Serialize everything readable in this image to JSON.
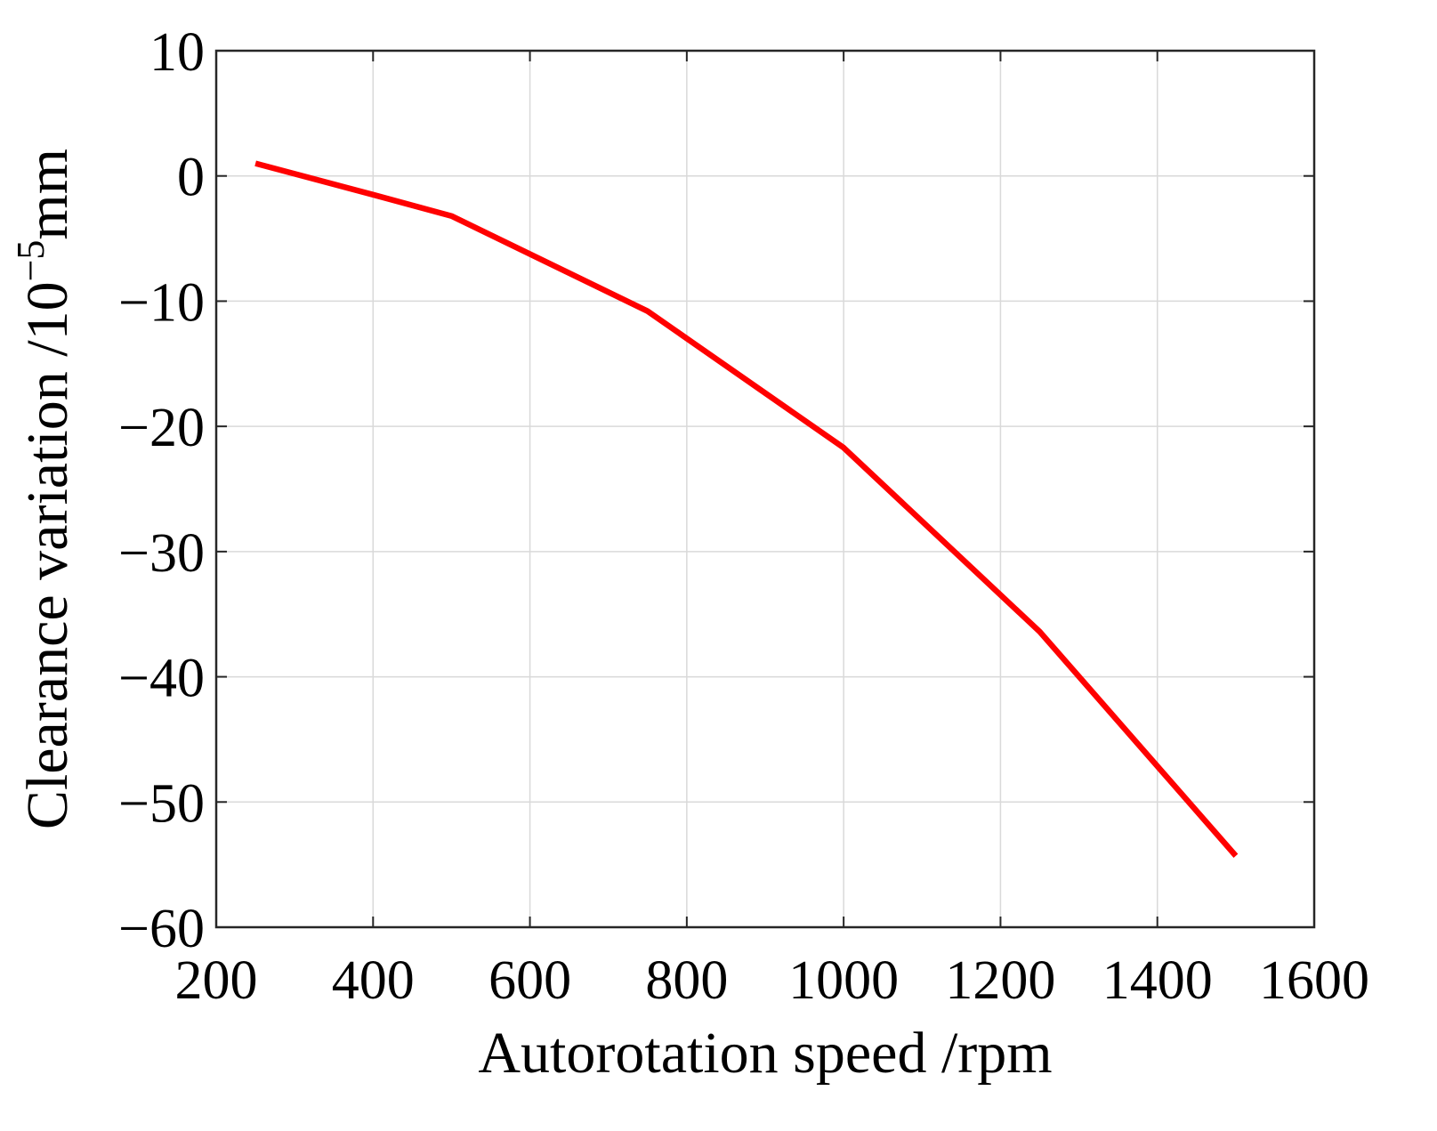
{
  "chart_data": {
    "type": "line",
    "title": "",
    "xlabel": "Autorotation speed /rpm",
    "ylabel": {
      "prefix": "Clearance variation /10",
      "superscript": "−5",
      "suffix": "mm"
    },
    "xlim": [
      200,
      1600
    ],
    "ylim": [
      -60,
      10
    ],
    "xticks": [
      200,
      400,
      600,
      800,
      1000,
      1200,
      1400,
      1600
    ],
    "yticks": [
      10,
      0,
      -10,
      -20,
      -30,
      -40,
      -50,
      -60
    ],
    "xtick_labels": [
      "200",
      "400",
      "600",
      "800",
      "1000",
      "1200",
      "1400",
      "1600"
    ],
    "ytick_labels": [
      "10",
      "0",
      "−10",
      "−20",
      "−30",
      "−40",
      "−50",
      "−60"
    ],
    "grid": true,
    "series": [
      {
        "color": "#ff0000",
        "x": [
          250,
          400,
          500,
          750,
          1000,
          1250,
          1500
        ],
        "y": [
          1.0,
          -1.5,
          -3.2,
          -10.8,
          -21.7,
          -36.4,
          -54.3
        ]
      }
    ]
  }
}
